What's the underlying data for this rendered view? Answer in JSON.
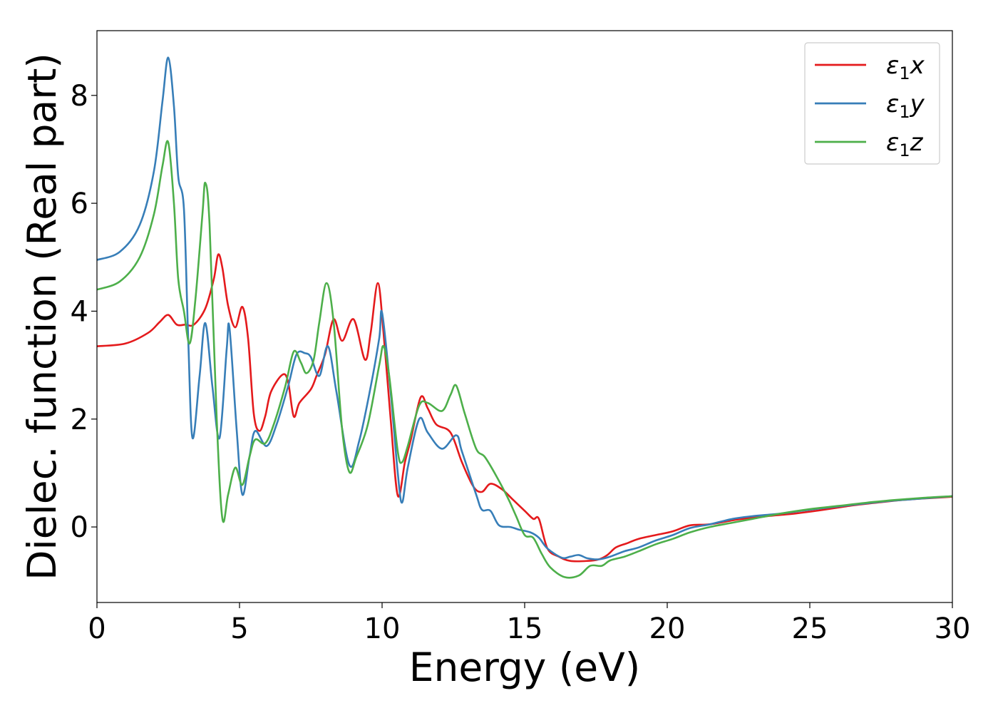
{
  "chart_data": {
    "type": "line",
    "xlabel": "Energy (eV)",
    "ylabel": "Dielec. function (Real part)",
    "xlim": [
      0,
      30
    ],
    "ylim": [
      -1.4,
      9.2
    ],
    "xticks": [
      0,
      5,
      10,
      15,
      20,
      25,
      30
    ],
    "yticks": [
      0,
      2,
      4,
      6,
      8
    ],
    "grid": false,
    "legend_position": "top-right",
    "series": [
      {
        "name": "ε₁x",
        "legend_main": "ε",
        "legend_sub": "1",
        "legend_var": "x",
        "color": "#e41a1c",
        "points": [
          [
            0,
            3.35
          ],
          [
            1.0,
            3.4
          ],
          [
            1.8,
            3.6
          ],
          [
            2.2,
            3.8
          ],
          [
            2.5,
            3.93
          ],
          [
            2.8,
            3.75
          ],
          [
            3.1,
            3.75
          ],
          [
            3.4,
            3.75
          ],
          [
            3.8,
            4.05
          ],
          [
            4.1,
            4.6
          ],
          [
            4.25,
            5.05
          ],
          [
            4.4,
            4.8
          ],
          [
            4.6,
            4.1
          ],
          [
            4.85,
            3.7
          ],
          [
            5.1,
            4.08
          ],
          [
            5.3,
            3.5
          ],
          [
            5.5,
            2.1
          ],
          [
            5.7,
            1.78
          ],
          [
            5.9,
            2.05
          ],
          [
            6.1,
            2.5
          ],
          [
            6.5,
            2.82
          ],
          [
            6.7,
            2.7
          ],
          [
            6.9,
            2.05
          ],
          [
            7.1,
            2.3
          ],
          [
            7.5,
            2.55
          ],
          [
            7.7,
            2.8
          ],
          [
            8.0,
            3.2
          ],
          [
            8.3,
            3.85
          ],
          [
            8.6,
            3.45
          ],
          [
            9.0,
            3.85
          ],
          [
            9.4,
            3.1
          ],
          [
            9.6,
            3.6
          ],
          [
            9.85,
            4.52
          ],
          [
            10.05,
            3.6
          ],
          [
            10.3,
            2.0
          ],
          [
            10.55,
            0.58
          ],
          [
            10.8,
            1.2
          ],
          [
            11.0,
            1.6
          ],
          [
            11.35,
            2.4
          ],
          [
            11.6,
            2.2
          ],
          [
            11.9,
            1.9
          ],
          [
            12.4,
            1.75
          ],
          [
            12.8,
            1.2
          ],
          [
            13.2,
            0.75
          ],
          [
            13.5,
            0.65
          ],
          [
            13.8,
            0.8
          ],
          [
            14.2,
            0.7
          ],
          [
            14.6,
            0.5
          ],
          [
            15.0,
            0.3
          ],
          [
            15.3,
            0.15
          ],
          [
            15.5,
            0.15
          ],
          [
            15.8,
            -0.4
          ],
          [
            16.2,
            -0.55
          ],
          [
            16.6,
            -0.63
          ],
          [
            17.2,
            -0.63
          ],
          [
            17.6,
            -0.6
          ],
          [
            17.9,
            -0.52
          ],
          [
            18.2,
            -0.38
          ],
          [
            18.6,
            -0.3
          ],
          [
            19.0,
            -0.22
          ],
          [
            19.6,
            -0.15
          ],
          [
            20.2,
            -0.08
          ],
          [
            20.8,
            0.03
          ],
          [
            21.5,
            0.05
          ],
          [
            22.5,
            0.14
          ],
          [
            23.5,
            0.2
          ],
          [
            24.5,
            0.25
          ],
          [
            25.5,
            0.32
          ],
          [
            26.5,
            0.4
          ],
          [
            27.5,
            0.46
          ],
          [
            28.5,
            0.51
          ],
          [
            30,
            0.56
          ]
        ]
      },
      {
        "name": "ε₁y",
        "legend_main": "ε",
        "legend_sub": "1",
        "legend_var": "y",
        "color": "#377eb8",
        "points": [
          [
            0,
            4.95
          ],
          [
            0.8,
            5.1
          ],
          [
            1.5,
            5.6
          ],
          [
            2.0,
            6.6
          ],
          [
            2.3,
            7.9
          ],
          [
            2.5,
            8.7
          ],
          [
            2.7,
            7.8
          ],
          [
            2.85,
            6.5
          ],
          [
            3.05,
            5.9
          ],
          [
            3.2,
            3.5
          ],
          [
            3.35,
            1.65
          ],
          [
            3.6,
            2.8
          ],
          [
            3.8,
            3.78
          ],
          [
            4.05,
            2.6
          ],
          [
            4.3,
            1.65
          ],
          [
            4.55,
            3.3
          ],
          [
            4.65,
            3.68
          ],
          [
            4.9,
            1.8
          ],
          [
            5.1,
            0.6
          ],
          [
            5.35,
            1.3
          ],
          [
            5.55,
            1.78
          ],
          [
            5.95,
            1.5
          ],
          [
            6.3,
            1.9
          ],
          [
            6.7,
            2.6
          ],
          [
            7.0,
            3.2
          ],
          [
            7.3,
            3.22
          ],
          [
            7.5,
            3.15
          ],
          [
            7.8,
            2.8
          ],
          [
            8.1,
            3.35
          ],
          [
            8.4,
            2.5
          ],
          [
            8.85,
            1.15
          ],
          [
            9.2,
            1.6
          ],
          [
            9.6,
            2.6
          ],
          [
            9.9,
            3.5
          ],
          [
            10.0,
            3.97
          ],
          [
            10.3,
            2.5
          ],
          [
            10.55,
            1.0
          ],
          [
            10.7,
            0.45
          ],
          [
            10.9,
            1.1
          ],
          [
            11.3,
            2.0
          ],
          [
            11.6,
            1.75
          ],
          [
            12.1,
            1.45
          ],
          [
            12.6,
            1.7
          ],
          [
            12.8,
            1.4
          ],
          [
            13.3,
            0.6
          ],
          [
            13.5,
            0.32
          ],
          [
            13.8,
            0.3
          ],
          [
            14.1,
            0.03
          ],
          [
            14.5,
            0.0
          ],
          [
            14.8,
            -0.05
          ],
          [
            15.2,
            -0.1
          ],
          [
            15.5,
            -0.2
          ],
          [
            15.8,
            -0.4
          ],
          [
            16.3,
            -0.57
          ],
          [
            16.6,
            -0.55
          ],
          [
            16.9,
            -0.52
          ],
          [
            17.2,
            -0.58
          ],
          [
            17.6,
            -0.6
          ],
          [
            18.0,
            -0.55
          ],
          [
            18.5,
            -0.45
          ],
          [
            19.0,
            -0.38
          ],
          [
            19.6,
            -0.25
          ],
          [
            20.2,
            -0.15
          ],
          [
            20.8,
            -0.02
          ],
          [
            21.5,
            0.05
          ],
          [
            22.3,
            0.15
          ],
          [
            23.0,
            0.2
          ],
          [
            24.0,
            0.25
          ],
          [
            25.0,
            0.32
          ],
          [
            26.0,
            0.38
          ],
          [
            27.0,
            0.44
          ],
          [
            28.0,
            0.49
          ],
          [
            29.0,
            0.53
          ],
          [
            30,
            0.57
          ]
        ]
      },
      {
        "name": "ε₁z",
        "legend_main": "ε",
        "legend_sub": "1",
        "legend_var": "z",
        "color": "#4daf4a",
        "points": [
          [
            0,
            4.4
          ],
          [
            0.8,
            4.55
          ],
          [
            1.5,
            5.0
          ],
          [
            2.0,
            5.8
          ],
          [
            2.3,
            6.7
          ],
          [
            2.5,
            7.13
          ],
          [
            2.7,
            6.0
          ],
          [
            2.85,
            4.6
          ],
          [
            3.05,
            4.0
          ],
          [
            3.25,
            3.4
          ],
          [
            3.45,
            4.2
          ],
          [
            3.7,
            5.8
          ],
          [
            3.8,
            6.38
          ],
          [
            3.95,
            5.6
          ],
          [
            4.2,
            2.0
          ],
          [
            4.4,
            0.15
          ],
          [
            4.6,
            0.6
          ],
          [
            4.85,
            1.1
          ],
          [
            5.1,
            0.78
          ],
          [
            5.35,
            1.3
          ],
          [
            5.55,
            1.62
          ],
          [
            5.9,
            1.55
          ],
          [
            6.2,
            1.9
          ],
          [
            6.6,
            2.6
          ],
          [
            6.9,
            3.25
          ],
          [
            7.15,
            3.05
          ],
          [
            7.35,
            2.85
          ],
          [
            7.6,
            3.1
          ],
          [
            7.8,
            3.8
          ],
          [
            8.05,
            4.52
          ],
          [
            8.3,
            3.8
          ],
          [
            8.6,
            1.8
          ],
          [
            8.85,
            1.02
          ],
          [
            9.1,
            1.3
          ],
          [
            9.5,
            1.9
          ],
          [
            9.9,
            3.0
          ],
          [
            10.05,
            3.35
          ],
          [
            10.25,
            2.8
          ],
          [
            10.55,
            1.4
          ],
          [
            10.7,
            1.2
          ],
          [
            10.9,
            1.5
          ],
          [
            11.3,
            2.25
          ],
          [
            11.6,
            2.3
          ],
          [
            12.1,
            2.15
          ],
          [
            12.4,
            2.45
          ],
          [
            12.6,
            2.62
          ],
          [
            12.9,
            2.1
          ],
          [
            13.3,
            1.45
          ],
          [
            13.6,
            1.3
          ],
          [
            14.0,
            0.95
          ],
          [
            14.4,
            0.55
          ],
          [
            14.7,
            0.2
          ],
          [
            15.0,
            -0.15
          ],
          [
            15.3,
            -0.2
          ],
          [
            15.6,
            -0.5
          ],
          [
            15.9,
            -0.75
          ],
          [
            16.4,
            -0.93
          ],
          [
            16.9,
            -0.9
          ],
          [
            17.3,
            -0.72
          ],
          [
            17.7,
            -0.72
          ],
          [
            18.0,
            -0.62
          ],
          [
            18.5,
            -0.55
          ],
          [
            19.0,
            -0.45
          ],
          [
            19.6,
            -0.32
          ],
          [
            20.2,
            -0.22
          ],
          [
            20.8,
            -0.1
          ],
          [
            21.5,
            0.0
          ],
          [
            22.3,
            0.08
          ],
          [
            23.0,
            0.15
          ],
          [
            24.0,
            0.25
          ],
          [
            25.0,
            0.33
          ],
          [
            26.0,
            0.39
          ],
          [
            27.0,
            0.45
          ],
          [
            28.0,
            0.5
          ],
          [
            29.0,
            0.54
          ],
          [
            30,
            0.57
          ]
        ]
      }
    ]
  }
}
